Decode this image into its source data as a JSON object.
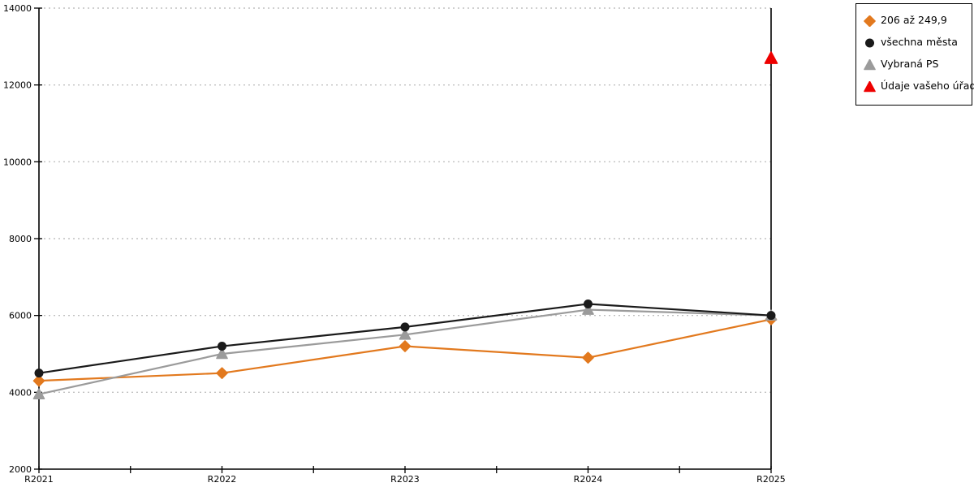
{
  "chart_data": {
    "type": "line",
    "title": "",
    "xlabel": "",
    "ylabel": "",
    "background": "#FFFFFF",
    "axis_color": "#000000",
    "gridline_color": "#C0C0C0",
    "grid": "horizontal-dotted",
    "legend_position": "top-right",
    "categories": [
      "R2021",
      "R2022",
      "R2023",
      "R2024",
      "R2025"
    ],
    "y_tick_labels": [
      "2000",
      "4000",
      "6000",
      "8000",
      "10000",
      "12000",
      "14000"
    ],
    "ylim": [
      2000,
      14000
    ],
    "ytick_step": 2000,
    "series": [
      {
        "name": "206 až 249,9",
        "marker": "diamond",
        "color": "#E2791E",
        "values": [
          4300,
          4500,
          5200,
          4900,
          5900
        ]
      },
      {
        "name": "všechna města",
        "marker": "circle",
        "color": "#1A1A1A",
        "values": [
          4500,
          5200,
          5700,
          6300,
          6000
        ]
      },
      {
        "name": "Vybraná PS",
        "marker": "triangle",
        "color": "#9B9B9B",
        "values": [
          3950,
          5000,
          5500,
          6150,
          6000
        ]
      },
      {
        "name": "Údaje vašeho úřadu",
        "marker": "triangle",
        "color": "#EE0000",
        "values": [
          null,
          null,
          null,
          null,
          12700
        ]
      }
    ]
  }
}
